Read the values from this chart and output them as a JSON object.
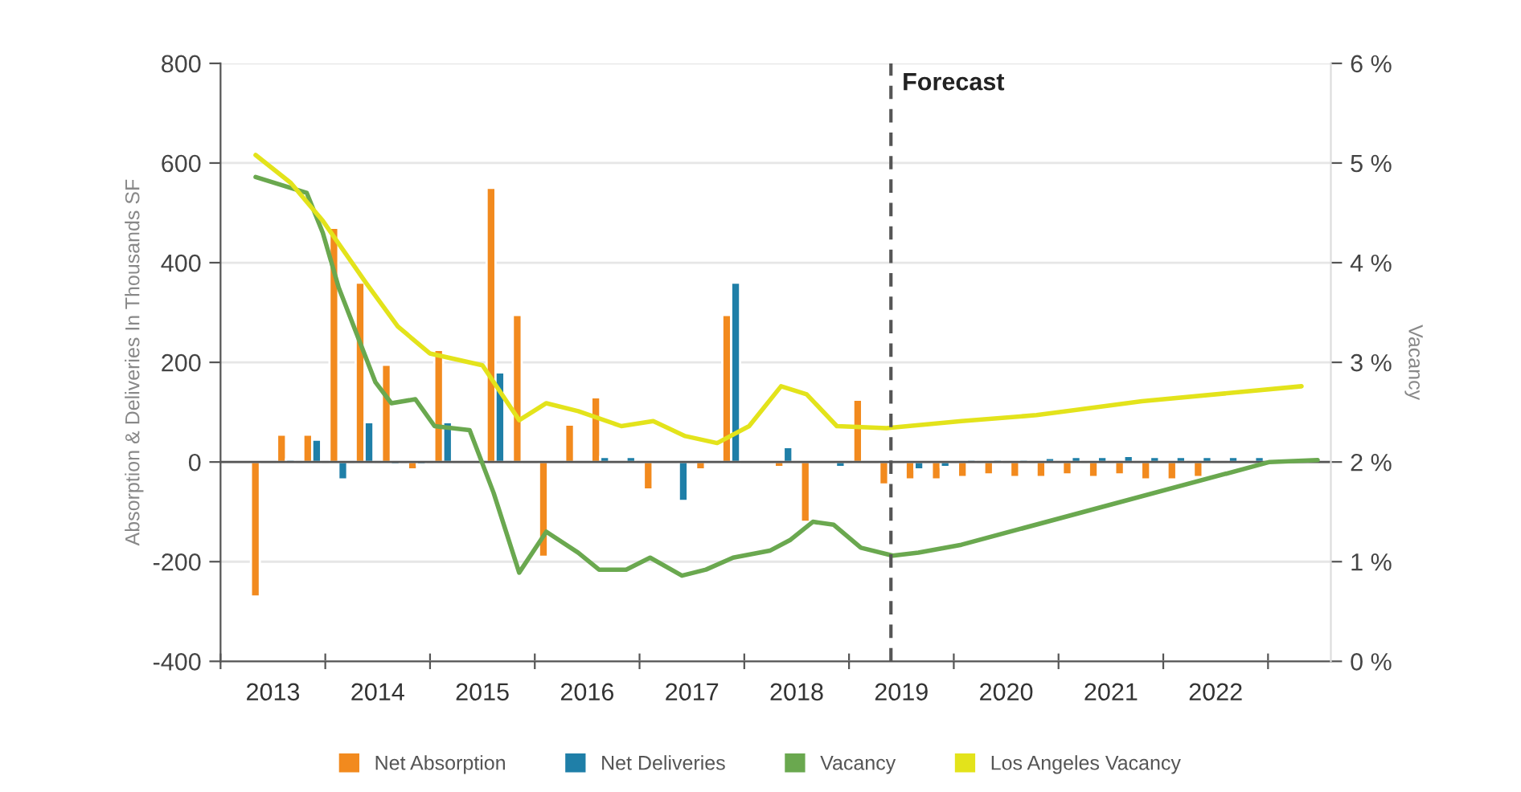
{
  "chart_data": {
    "type": "bar",
    "ylabel": "Absorption & Deliveries In Thousands SF",
    "y2label": "Vacancy",
    "x": [
      2013.375,
      2013.625,
      2013.875,
      2014.125,
      2014.375,
      2014.625,
      2014.875,
      2015.125,
      2015.375,
      2015.625,
      2015.875,
      2016.125,
      2016.375,
      2016.625,
      2016.875,
      2017.125,
      2017.375,
      2017.625,
      2017.875,
      2018.125,
      2018.375,
      2018.625,
      2018.875,
      2019.125,
      2019.375,
      2019.625,
      2019.875,
      2020.125,
      2020.375,
      2020.625,
      2020.875,
      2021.125,
      2021.375,
      2021.625,
      2021.875,
      2022.125,
      2022.375,
      2022.625,
      2022.875
    ],
    "series": [
      {
        "name": "Net Absorption",
        "color": "#f28a1e",
        "values": [
          -270,
          55,
          55,
          470,
          360,
          195,
          -15,
          225,
          null,
          550,
          295,
          -190,
          75,
          130,
          null,
          -55,
          null,
          -15,
          295,
          null,
          -10,
          -120,
          null,
          125,
          -45,
          -35,
          -35,
          -30,
          -25,
          -30,
          -30,
          -25,
          -30,
          -25,
          -35,
          -35,
          -30,
          null,
          null
        ]
      },
      {
        "name": "Net Deliveries",
        "color": "#1f7fa8",
        "values": [
          null,
          5,
          45,
          -35,
          80,
          -5,
          -5,
          80,
          null,
          180,
          null,
          null,
          null,
          10,
          10,
          null,
          -78,
          null,
          360,
          null,
          30,
          null,
          -10,
          null,
          null,
          -15,
          -10,
          5,
          5,
          5,
          8,
          10,
          10,
          12,
          10,
          10,
          10,
          10,
          10
        ]
      },
      {
        "name": "Vacancy",
        "type": "line",
        "axis": "y2",
        "color": "#6aa84f",
        "x": [
          2013.335,
          2013.823,
          2013.976,
          2014.128,
          2014.479,
          2014.631,
          2014.86,
          2015.043,
          2015.378,
          2015.607,
          2015.851,
          2016.11,
          2016.415,
          2016.613,
          2016.872,
          2017.101,
          2017.405,
          2017.634,
          2017.893,
          2018.244,
          2018.442,
          2018.655,
          2018.854,
          2019.113,
          2019.418,
          2019.662,
          2020.073,
          2023.015,
          2023.473
        ],
        "values": [
          4.86,
          4.7,
          4.3,
          3.75,
          2.8,
          2.59,
          2.63,
          2.36,
          2.32,
          1.69,
          0.89,
          1.3,
          1.09,
          0.92,
          0.92,
          1.04,
          0.86,
          0.92,
          1.04,
          1.11,
          1.22,
          1.4,
          1.37,
          1.14,
          1.06,
          1.09,
          1.17,
          2.0,
          2.02
        ]
      },
      {
        "name": "Los Angeles Vacancy",
        "type": "line",
        "axis": "y2",
        "color": "#e3e31b",
        "x": [
          2013.335,
          2013.671,
          2013.976,
          2014.387,
          2014.692,
          2014.997,
          2015.5,
          2015.851,
          2016.11,
          2016.415,
          2016.826,
          2017.131,
          2017.436,
          2017.741,
          2018.046,
          2018.351,
          2018.595,
          2018.884,
          2019.357,
          2020.073,
          2020.79,
          2021.796,
          2023.32
        ],
        "values": [
          5.08,
          4.8,
          4.42,
          3.8,
          3.36,
          3.09,
          2.97,
          2.42,
          2.59,
          2.51,
          2.36,
          2.41,
          2.26,
          2.19,
          2.36,
          2.76,
          2.68,
          2.36,
          2.34,
          2.41,
          2.47,
          2.61,
          2.76
        ]
      }
    ],
    "xlim": [
      2013,
      2023.6
    ],
    "xticks": [
      {
        "value": 2013,
        "label": null
      },
      {
        "value": 2013.5,
        "label": "2013"
      },
      {
        "value": 2014,
        "label": null
      },
      {
        "value": 2014.5,
        "label": "2014"
      },
      {
        "value": 2015,
        "label": null
      },
      {
        "value": 2015.5,
        "label": "2015"
      },
      {
        "value": 2016,
        "label": null
      },
      {
        "value": 2016.5,
        "label": "2016"
      },
      {
        "value": 2017,
        "label": null
      },
      {
        "value": 2017.5,
        "label": "2017"
      },
      {
        "value": 2018,
        "label": null
      },
      {
        "value": 2018.5,
        "label": "2018"
      },
      {
        "value": 2019,
        "label": null
      },
      {
        "value": 2019.5,
        "label": "2019"
      },
      {
        "value": 2020,
        "label": null
      },
      {
        "value": 2020.5,
        "label": "2020"
      },
      {
        "value": 2021,
        "label": null
      },
      {
        "value": 2021.5,
        "label": "2021"
      },
      {
        "value": 2022,
        "label": null
      },
      {
        "value": 2022.5,
        "label": "2022"
      },
      {
        "value": 2023,
        "label": null
      }
    ],
    "ylim": [
      -400,
      800
    ],
    "yticks": [
      -400,
      -200,
      0,
      200,
      400,
      600,
      800
    ],
    "y2lim": [
      0,
      6
    ],
    "y2ticks": [
      {
        "value": 0,
        "label": "0 %"
      },
      {
        "value": 1,
        "label": "1 %"
      },
      {
        "value": 2,
        "label": "2 %"
      },
      {
        "value": 3,
        "label": "3 %"
      },
      {
        "value": 4,
        "label": "4 %"
      },
      {
        "value": 5,
        "label": "5 %"
      },
      {
        "value": 6,
        "label": "6 %"
      }
    ],
    "ref_lines": [
      {
        "axis": "x",
        "value": 2019.4,
        "label": "Forecast",
        "color": "#555555",
        "line_style": "dashed"
      }
    ],
    "grid": "y",
    "legend": "bottom"
  }
}
